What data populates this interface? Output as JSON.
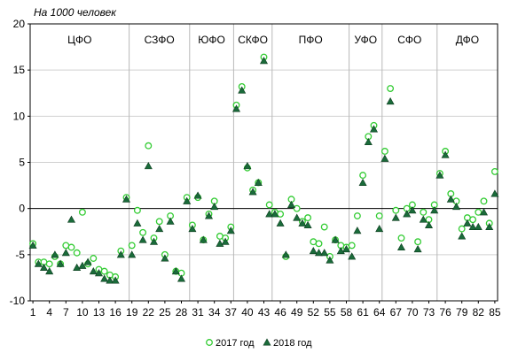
{
  "chart_data": {
    "type": "scatter",
    "unit_label": "На 1000 человек",
    "ylim": [
      -10,
      20
    ],
    "yticks": [
      -10,
      -5,
      0,
      5,
      10,
      15,
      20
    ],
    "xticks": [
      1,
      4,
      7,
      10,
      13,
      16,
      19,
      22,
      25,
      28,
      31,
      34,
      37,
      40,
      43,
      46,
      49,
      52,
      55,
      58,
      61,
      64,
      67,
      70,
      73,
      76,
      79,
      82,
      85
    ],
    "x_count": 85,
    "grid": "horizontal",
    "legend_position": "bottom",
    "regions": [
      {
        "label": "ЦФО",
        "start": 1,
        "end": 18
      },
      {
        "label": "СЗФО",
        "start": 19,
        "end": 29
      },
      {
        "label": "ЮФО",
        "start": 30,
        "end": 37
      },
      {
        "label": "СКФО",
        "start": 38,
        "end": 44
      },
      {
        "label": "ПФО",
        "start": 45,
        "end": 58
      },
      {
        "label": "УФО",
        "start": 59,
        "end": 64
      },
      {
        "label": "СФО",
        "start": 65,
        "end": 74
      },
      {
        "label": "ДФО",
        "start": 75,
        "end": 85
      }
    ],
    "series": [
      {
        "name": "2017 год",
        "marker": "circle",
        "color": "#33cc33",
        "values": [
          -3.8,
          -5.8,
          -5.8,
          -6.0,
          -5.2,
          -6.0,
          -4.0,
          -4.2,
          -4.8,
          -0.4,
          -6.0,
          -5.4,
          -6.6,
          -6.8,
          -7.2,
          -7.4,
          -4.6,
          1.2,
          -4.0,
          -0.2,
          -2.6,
          6.8,
          -3.2,
          -1.4,
          -5.0,
          -0.8,
          -6.8,
          -7.0,
          1.2,
          -1.8,
          1.2,
          -3.4,
          -0.6,
          0.8,
          -3.0,
          -3.2,
          -2.0,
          11.2,
          13.2,
          4.4,
          2.0,
          2.8,
          16.4,
          0.4,
          -0.4,
          -0.6,
          -5.2,
          1.0,
          0.0,
          -1.4,
          -1.0,
          -3.6,
          -3.8,
          -2.0,
          -5.2,
          -3.4,
          -4.0,
          -4.2,
          -4.0,
          -0.8,
          3.6,
          7.8,
          9.0,
          -0.8,
          6.2,
          13.0,
          -0.2,
          -3.2,
          0.0,
          0.4,
          -3.6,
          -0.4,
          -1.2,
          0.4,
          3.8,
          6.2,
          1.6,
          0.8,
          -2.2,
          -1.0,
          -1.2,
          -0.4,
          0.8,
          -1.6,
          4.0
        ]
      },
      {
        "name": "2018 год",
        "marker": "triangle",
        "color": "#1a6b3a",
        "values": [
          -4.0,
          -6.0,
          -6.4,
          -6.8,
          -5.0,
          -6.0,
          -4.8,
          -1.2,
          -6.4,
          -6.2,
          -5.8,
          -6.8,
          -7.0,
          -7.6,
          -7.8,
          -7.8,
          -5.0,
          1.0,
          -5.0,
          -1.6,
          -3.4,
          4.6,
          -3.6,
          -2.2,
          -5.4,
          -1.4,
          -6.8,
          -7.6,
          0.8,
          -2.2,
          1.4,
          -3.4,
          -0.8,
          0.2,
          -3.8,
          -3.6,
          -2.4,
          10.8,
          12.8,
          4.6,
          1.8,
          2.8,
          16.0,
          -0.6,
          -0.6,
          -1.6,
          -5.0,
          0.4,
          -1.0,
          -1.6,
          -1.8,
          -4.6,
          -4.8,
          -4.8,
          -5.6,
          -3.4,
          -4.6,
          -4.4,
          -5.2,
          -2.4,
          2.8,
          7.2,
          8.6,
          -2.2,
          5.4,
          11.6,
          -1.0,
          -4.2,
          -0.6,
          -0.2,
          -4.4,
          -1.2,
          -1.8,
          -0.2,
          3.6,
          5.8,
          1.0,
          0.2,
          -3.0,
          -1.6,
          -2.0,
          -2.0,
          -0.4,
          -2.0,
          1.6
        ]
      }
    ]
  }
}
